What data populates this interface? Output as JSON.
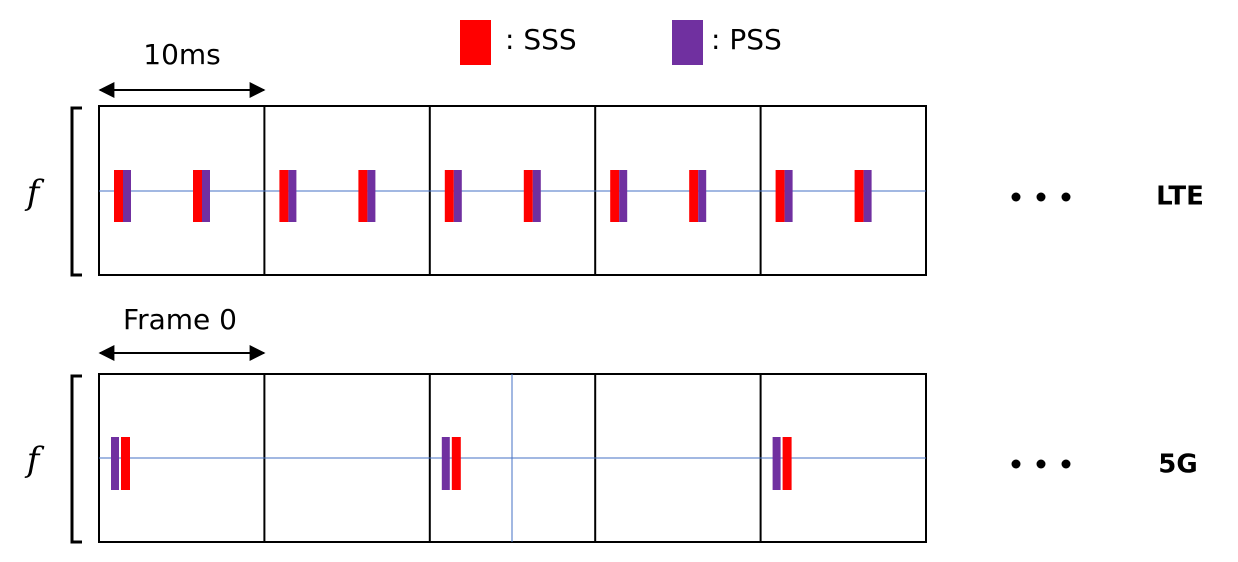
{
  "legend": [
    {
      "label": ": SSS"
    },
    {
      "label": ": PSS"
    }
  ],
  "rows": [
    {
      "span_label": "10ms",
      "axis_label": "f",
      "name": "LTE"
    },
    {
      "span_label": "Frame 0",
      "axis_label": "f",
      "name": "5G"
    }
  ]
}
